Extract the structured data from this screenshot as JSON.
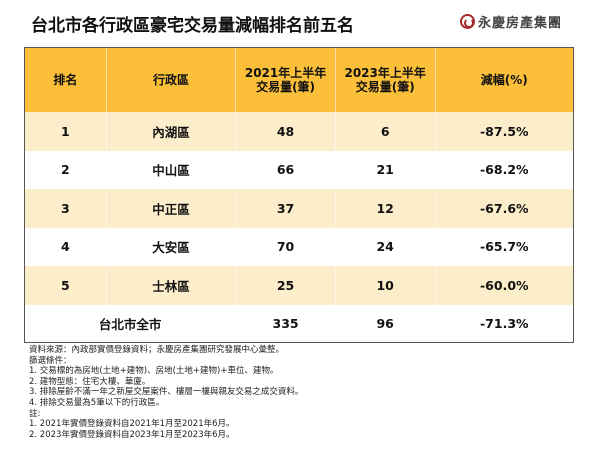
{
  "title": "台北市各行政區豪宅交易量減幅排名前五名",
  "logo": {
    "icon": "company-logo-icon",
    "text": "永慶房產集團",
    "color": "#a62a2a"
  },
  "colors": {
    "header_bg": "#fbbf39",
    "stripe_bg": "#fdeecb",
    "border": "#555555"
  },
  "table": {
    "headers": [
      "排名",
      "行政區",
      "2021年上半年\n交易量(筆)",
      "2023年上半年\n交易量(筆)",
      "減幅(%)"
    ],
    "header_lines": {
      "h3a": "2021年上半年",
      "h3b": "交易量(筆)",
      "h4a": "2023年上半年",
      "h4b": "交易量(筆)"
    },
    "rows": [
      {
        "rank": "1",
        "district": "內湖區",
        "vol_2021": "48",
        "vol_2023": "6",
        "change": "-87.5%"
      },
      {
        "rank": "2",
        "district": "中山區",
        "vol_2021": "66",
        "vol_2023": "21",
        "change": "-68.2%"
      },
      {
        "rank": "3",
        "district": "中正區",
        "vol_2021": "37",
        "vol_2023": "12",
        "change": "-67.6%"
      },
      {
        "rank": "4",
        "district": "大安區",
        "vol_2021": "70",
        "vol_2023": "24",
        "change": "-65.7%"
      },
      {
        "rank": "5",
        "district": "士林區",
        "vol_2021": "25",
        "vol_2023": "10",
        "change": "-60.0%"
      }
    ],
    "total": {
      "label": "台北市全市",
      "vol_2021": "335",
      "vol_2023": "96",
      "change": "-71.3%"
    }
  },
  "notes": [
    "資料來源：內政部實價登錄資料；永慶房產集團研究發展中心彙整。",
    "篩選條件：",
    "1. 交易標的為房地(土地+建物)、房地(土地+建物)+車位、建物。",
    "2. 建物型態：住宅大樓、華廈。",
    "3. 排除屋齡不滿一年之新屋交屋案件、樓層一樓與親友交易之成交資料。",
    "4. 排除交易量為5筆以下的行政區。",
    "註:",
    "1. 2021年實價登錄資料自2021年1月至2021年6月。",
    "2. 2023年實價登錄資料自2023年1月至2023年6月。"
  ]
}
